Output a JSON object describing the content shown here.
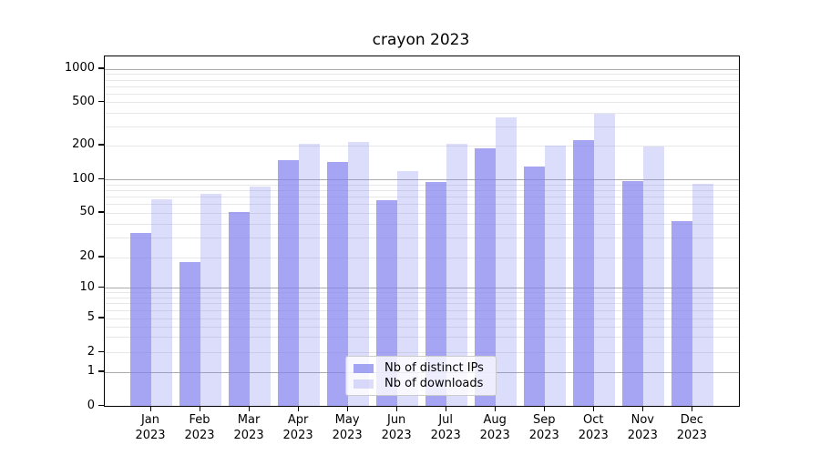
{
  "chart_data": {
    "type": "bar",
    "title": "crayon 2023",
    "x_months": [
      "Jan",
      "Feb",
      "Mar",
      "Apr",
      "May",
      "Jun",
      "Jul",
      "Aug",
      "Sep",
      "Oct",
      "Nov",
      "Dec"
    ],
    "x_year": "2023",
    "series": [
      {
        "name": "Nb of distinct IPs",
        "color": "#8282F0B8",
        "values": [
          33,
          18,
          51,
          148,
          144,
          65,
          94,
          190,
          131,
          226,
          96,
          42
        ]
      },
      {
        "name": "Nb of downloads",
        "color": "#8282F047",
        "values": [
          66,
          74,
          86,
          207,
          215,
          118,
          209,
          360,
          200,
          395,
          197,
          91
        ]
      }
    ],
    "yscale": "symlog",
    "ylim": [
      0,
      1000
    ],
    "yticks": [
      0,
      1,
      2,
      5,
      10,
      20,
      50,
      100,
      200,
      500,
      1000
    ],
    "grid": true,
    "legend_position": "inside-bottom-center",
    "colors": {
      "major_grid": "#ababab",
      "minor_grid": "#e7e7e7",
      "axis": "#000000",
      "legend_border": "#cccccc"
    }
  }
}
